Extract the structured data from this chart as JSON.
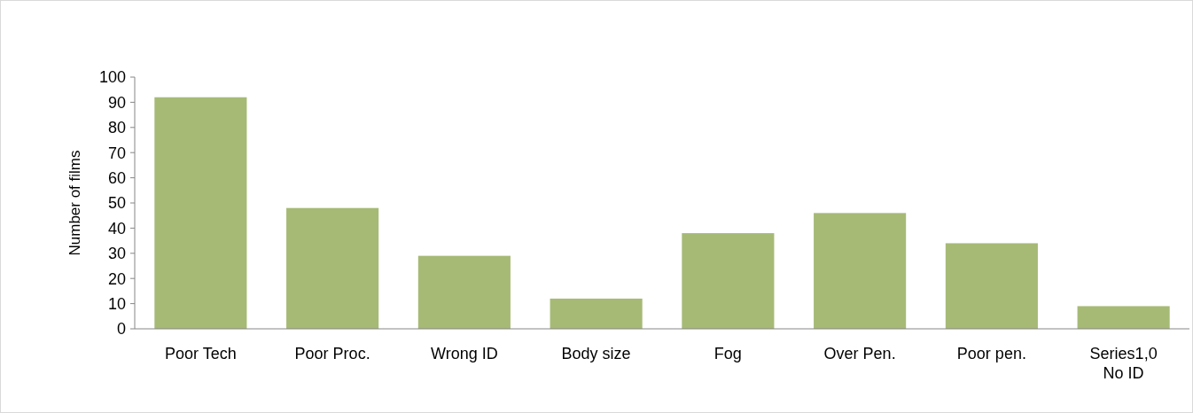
{
  "chart_data": {
    "type": "bar",
    "ylabel": "Number of films",
    "categories": [
      "Poor Tech",
      "Poor Proc.",
      "Wrong ID",
      "Body size",
      "Fog",
      "Over Pen.",
      "Poor pen.",
      "Series1,0\nNo ID"
    ],
    "values": [
      92,
      48,
      29,
      12,
      38,
      46,
      34,
      9
    ],
    "color": "#a6ba76",
    "ylim": [
      0,
      100
    ],
    "yticks": [
      0,
      10,
      20,
      30,
      40,
      50,
      60,
      70,
      80,
      90,
      100
    ],
    "grid": false
  }
}
